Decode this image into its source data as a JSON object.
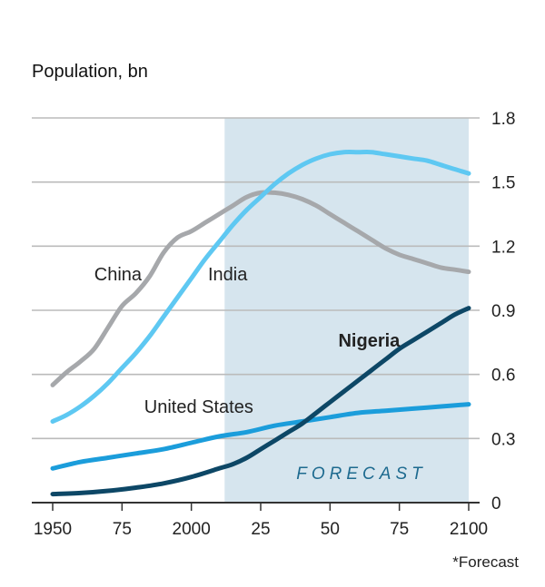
{
  "chart_data": {
    "type": "line",
    "title": "Population, bn",
    "xlim": [
      1950,
      2100
    ],
    "ylim": [
      0,
      1.8
    ],
    "x_ticks": [
      1950,
      1975,
      2000,
      2025,
      2050,
      2075,
      2100
    ],
    "x_tick_labels": [
      "1950",
      "75",
      "2000",
      "25",
      "50",
      "75",
      "2100"
    ],
    "y_ticks": [
      0,
      0.3,
      0.6,
      0.9,
      1.2,
      1.5,
      1.8
    ],
    "y_tick_labels": [
      "0",
      "0.3",
      "0.6",
      "0.9",
      "1.2",
      "1.5",
      "1.8"
    ],
    "grid": true,
    "y_axis_side": "right",
    "forecast_start": 2012,
    "forecast_label": "FORECAST",
    "note": "*Forecast",
    "colors": {
      "background": "#ffffff",
      "forecast_shade": "#d6e5ee",
      "grid": "#bbbbbb",
      "axis": "#333333"
    },
    "series": [
      {
        "name": "China",
        "label_x": 1965,
        "label_y": 1.04,
        "bold": false,
        "color": "#a6a8ab",
        "x": [
          1950,
          1955,
          1960,
          1965,
          1970,
          1975,
          1980,
          1985,
          1990,
          1995,
          2000,
          2005,
          2010,
          2015,
          2020,
          2025,
          2030,
          2035,
          2040,
          2045,
          2050,
          2055,
          2060,
          2065,
          2070,
          2075,
          2080,
          2085,
          2090,
          2095,
          2100
        ],
        "y": [
          0.55,
          0.61,
          0.66,
          0.72,
          0.82,
          0.92,
          0.98,
          1.06,
          1.17,
          1.24,
          1.27,
          1.31,
          1.35,
          1.39,
          1.43,
          1.45,
          1.45,
          1.44,
          1.42,
          1.39,
          1.35,
          1.31,
          1.27,
          1.23,
          1.19,
          1.16,
          1.14,
          1.12,
          1.1,
          1.09,
          1.08
        ]
      },
      {
        "name": "India",
        "label_x": 2006,
        "label_y": 1.04,
        "bold": false,
        "color": "#5ec8f2",
        "x": [
          1950,
          1955,
          1960,
          1965,
          1970,
          1975,
          1980,
          1985,
          1990,
          1995,
          2000,
          2005,
          2010,
          2015,
          2020,
          2025,
          2030,
          2035,
          2040,
          2045,
          2050,
          2055,
          2060,
          2065,
          2070,
          2075,
          2080,
          2085,
          2090,
          2095,
          2100
        ],
        "y": [
          0.38,
          0.41,
          0.45,
          0.5,
          0.56,
          0.63,
          0.7,
          0.78,
          0.87,
          0.96,
          1.05,
          1.14,
          1.22,
          1.3,
          1.37,
          1.43,
          1.49,
          1.54,
          1.58,
          1.61,
          1.63,
          1.64,
          1.64,
          1.64,
          1.63,
          1.62,
          1.61,
          1.6,
          1.58,
          1.56,
          1.54
        ]
      },
      {
        "name": "United States",
        "label_x": 1983,
        "label_y": 0.42,
        "bold": false,
        "color": "#1b9ddb",
        "x": [
          1950,
          1960,
          1970,
          1980,
          1990,
          2000,
          2010,
          2020,
          2030,
          2040,
          2050,
          2060,
          2070,
          2080,
          2090,
          2100
        ],
        "y": [
          0.16,
          0.19,
          0.21,
          0.23,
          0.25,
          0.28,
          0.31,
          0.33,
          0.36,
          0.38,
          0.4,
          0.42,
          0.43,
          0.44,
          0.45,
          0.46
        ]
      },
      {
        "name": "Nigeria",
        "label_x": 2053,
        "label_y": 0.73,
        "bold": true,
        "color": "#0d4766",
        "x": [
          1950,
          1960,
          1970,
          1980,
          1990,
          2000,
          2010,
          2015,
          2020,
          2025,
          2030,
          2035,
          2040,
          2045,
          2050,
          2055,
          2060,
          2065,
          2070,
          2075,
          2080,
          2085,
          2090,
          2095,
          2100
        ],
        "y": [
          0.04,
          0.045,
          0.055,
          0.07,
          0.09,
          0.12,
          0.16,
          0.18,
          0.21,
          0.25,
          0.29,
          0.33,
          0.37,
          0.42,
          0.47,
          0.52,
          0.57,
          0.62,
          0.67,
          0.72,
          0.76,
          0.8,
          0.84,
          0.88,
          0.91
        ]
      }
    ]
  }
}
